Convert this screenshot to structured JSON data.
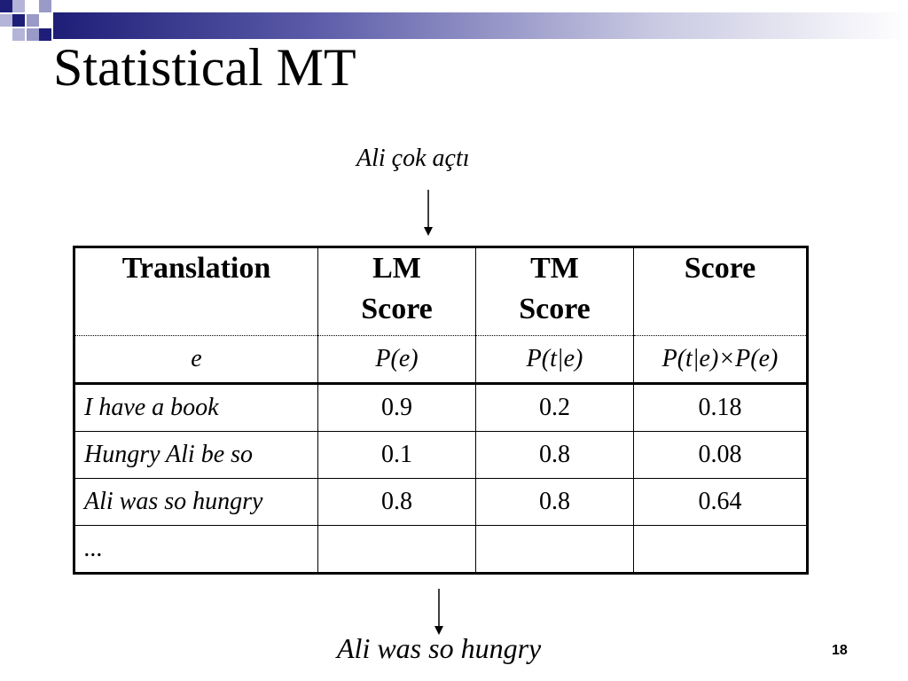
{
  "slide": {
    "title": "Statistical MT",
    "input_sentence": "Ali çok açtı",
    "output_sentence": "Ali was so hungry",
    "page_number": "18"
  },
  "table": {
    "headers": [
      "Translation",
      "LM Score",
      "TM Score",
      "Score"
    ],
    "formula_row": {
      "translation": "e",
      "lm": "P(e)",
      "tm": "P(t|e)",
      "score": "P(t|e)×P(e)"
    },
    "rows": [
      {
        "translation": "I have a book",
        "lm": "0.9",
        "tm": "0.2",
        "score": "0.18"
      },
      {
        "translation": "Hungry Ali be so",
        "lm": "0.1",
        "tm": "0.8",
        "score": "0.08"
      },
      {
        "translation": "Ali was so hungry",
        "lm": "0.8",
        "tm": "0.8",
        "score": "0.64"
      },
      {
        "translation": "...",
        "lm": "",
        "tm": "",
        "score": ""
      }
    ]
  },
  "colors": {
    "bar_dark": "#1e1e78",
    "bar_light": "#c8c8e2",
    "square_dark": "#1e1e78",
    "square_light": "#9a9ac8"
  }
}
